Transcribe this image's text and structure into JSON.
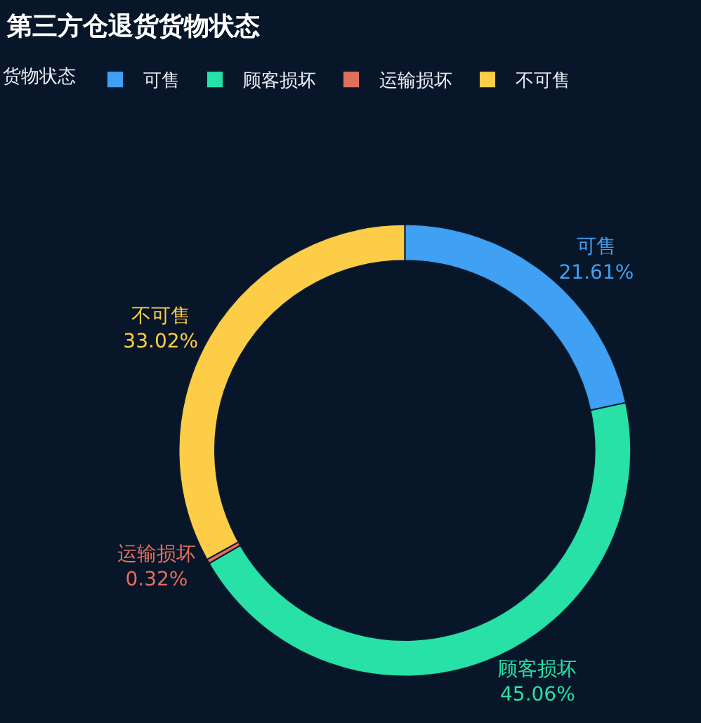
{
  "chart_data": {
    "type": "donut",
    "title": "第三方仓退货货物状态",
    "legend_title": "货物状态",
    "legend": "top left",
    "categories": [
      "可售",
      "顾客损坏",
      "运输损坏",
      "不可售"
    ],
    "values": [
      21.61,
      45.06,
      0.32,
      33.02
    ],
    "value_labels": [
      "21.61%",
      "45.06%",
      "0.32%",
      "33.02%"
    ],
    "colors": [
      "#3fa0f4",
      "#27e1a7",
      "#e36e5c",
      "#fecd47"
    ]
  }
}
